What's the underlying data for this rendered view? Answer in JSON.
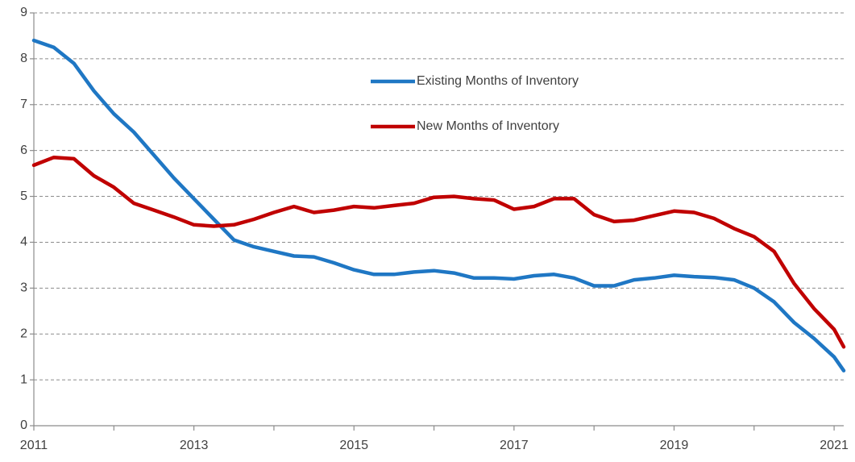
{
  "chart_data": {
    "type": "line",
    "x": [
      2011,
      2011.25,
      2011.5,
      2011.75,
      2012,
      2012.25,
      2012.5,
      2012.75,
      2013,
      2013.25,
      2013.5,
      2013.75,
      2014,
      2014.25,
      2014.5,
      2014.75,
      2015,
      2015.25,
      2015.5,
      2015.75,
      2016,
      2016.25,
      2016.5,
      2016.75,
      2017,
      2017.25,
      2017.5,
      2017.75,
      2018,
      2018.25,
      2018.5,
      2018.75,
      2019,
      2019.25,
      2019.5,
      2019.75,
      2020,
      2020.25,
      2020.5,
      2020.75,
      2021,
      2021.12
    ],
    "series": [
      {
        "name": "Existing Months of Inventory",
        "color": "#1f77c4",
        "values": [
          8.4,
          8.25,
          7.9,
          7.3,
          6.8,
          6.4,
          5.9,
          5.4,
          4.95,
          4.5,
          4.05,
          3.9,
          3.8,
          3.7,
          3.68,
          3.55,
          3.4,
          3.3,
          3.3,
          3.35,
          3.38,
          3.33,
          3.22,
          3.22,
          3.2,
          3.27,
          3.3,
          3.22,
          3.05,
          3.05,
          3.18,
          3.22,
          3.28,
          3.25,
          3.23,
          3.18,
          3.0,
          2.7,
          2.25,
          1.9,
          1.5,
          1.2
        ]
      },
      {
        "name": "New Months of Inventory",
        "color": "#c00000",
        "values": [
          5.68,
          5.85,
          5.82,
          5.45,
          5.2,
          4.85,
          4.7,
          4.55,
          4.38,
          4.35,
          4.38,
          4.5,
          4.65,
          4.78,
          4.65,
          4.7,
          4.78,
          4.75,
          4.8,
          4.85,
          4.98,
          5.0,
          4.95,
          4.92,
          4.72,
          4.78,
          4.95,
          4.95,
          4.6,
          4.45,
          4.48,
          4.58,
          4.68,
          4.65,
          4.52,
          4.3,
          4.12,
          3.8,
          3.1,
          2.55,
          2.1,
          1.72
        ]
      }
    ],
    "xlim": [
      2011,
      2021.12
    ],
    "xticks": [
      2011,
      2013,
      2015,
      2017,
      2019,
      2021
    ],
    "minor_xticks": [
      2012,
      2014,
      2016,
      2018,
      2020
    ],
    "ylim": [
      0,
      9
    ],
    "yticks": [
      0,
      1,
      2,
      3,
      4,
      5,
      6,
      7,
      8,
      9
    ],
    "grid": true
  }
}
